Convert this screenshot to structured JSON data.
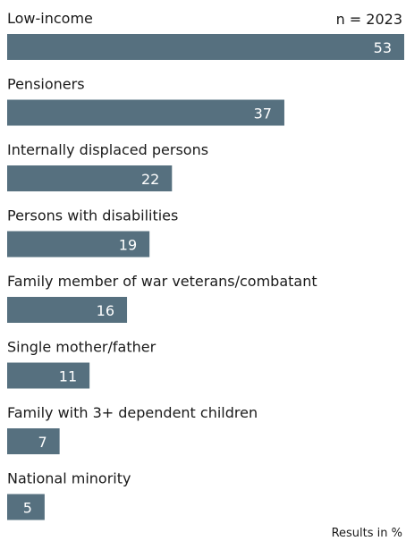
{
  "chart_data": {
    "type": "bar",
    "horizontal": true,
    "annotation": "n = 2023",
    "footnote": "Results in %",
    "categories": [
      "Low-income",
      "Pensioners",
      "Internally displaced persons",
      "Persons with disabilities",
      "Family member of war veterans/combatant",
      "Single mother/father",
      "Family with 3+ dependent children",
      "National minority"
    ],
    "values": [
      53,
      37,
      22,
      19,
      16,
      11,
      7,
      5
    ],
    "color": "#56707f"
  }
}
